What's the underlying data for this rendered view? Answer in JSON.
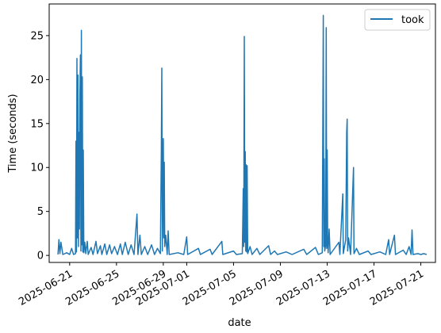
{
  "chart_data": {
    "type": "line",
    "xlabel": "date",
    "ylabel": "Time (seconds)",
    "x_tick_labels": [
      "2025-06-21",
      "2025-06-25",
      "2025-06-29",
      "2025-07-01",
      "2025-07-05",
      "2025-07-09",
      "2025-07-13",
      "2025-07-17",
      "2025-07-21"
    ],
    "y_ticks": [
      0,
      5,
      10,
      15,
      20,
      25
    ],
    "xlim": [
      "2025-06-19T06:00",
      "2025-07-22T06:00"
    ],
    "ylim": [
      -0.8,
      28.6
    ],
    "legend": {
      "position": "top-right",
      "entries": [
        "took"
      ]
    },
    "grid": false,
    "series": [
      {
        "name": "took",
        "color": "#1f77b4",
        "points": [
          [
            "2025-06-20T00:00",
            0.1
          ],
          [
            "2025-06-20T02:00",
            1.8
          ],
          [
            "2025-06-20T04:00",
            0.2
          ],
          [
            "2025-06-20T06:00",
            1.5
          ],
          [
            "2025-06-20T10:00",
            0.1
          ],
          [
            "2025-06-20T18:00",
            0.3
          ],
          [
            "2025-06-21T00:00",
            0.1
          ],
          [
            "2025-06-21T04:00",
            0.8
          ],
          [
            "2025-06-21T08:00",
            0.1
          ],
          [
            "2025-06-21T12:00",
            0.2
          ],
          [
            "2025-06-21T13:00",
            13.0
          ],
          [
            "2025-06-21T14:00",
            0.4
          ],
          [
            "2025-06-21T15:00",
            22.4
          ],
          [
            "2025-06-21T16:00",
            2.0
          ],
          [
            "2025-06-21T17:00",
            20.5
          ],
          [
            "2025-06-21T18:00",
            1.0
          ],
          [
            "2025-06-21T19:00",
            14.0
          ],
          [
            "2025-06-21T20:00",
            3.0
          ],
          [
            "2025-06-21T21:00",
            18.0
          ],
          [
            "2025-06-21T22:00",
            22.8
          ],
          [
            "2025-06-21T23:00",
            0.5
          ],
          [
            "2025-06-22T00:00",
            25.6
          ],
          [
            "2025-06-22T01:00",
            1.2
          ],
          [
            "2025-06-22T02:00",
            20.3
          ],
          [
            "2025-06-22T03:00",
            0.4
          ],
          [
            "2025-06-22T04:00",
            12.0
          ],
          [
            "2025-06-22T05:00",
            0.3
          ],
          [
            "2025-06-22T07:00",
            1.5
          ],
          [
            "2025-06-22T09:00",
            0.2
          ],
          [
            "2025-06-22T12:00",
            1.6
          ],
          [
            "2025-06-22T14:00",
            0.1
          ],
          [
            "2025-06-22T20:00",
            0.9
          ],
          [
            "2025-06-23T00:00",
            0.1
          ],
          [
            "2025-06-23T06:00",
            1.6
          ],
          [
            "2025-06-23T09:00",
            0.2
          ],
          [
            "2025-06-23T15:00",
            1.1
          ],
          [
            "2025-06-23T18:00",
            0.1
          ],
          [
            "2025-06-24T00:00",
            1.3
          ],
          [
            "2025-06-24T04:00",
            0.1
          ],
          [
            "2025-06-24T10:00",
            1.2
          ],
          [
            "2025-06-24T14:00",
            0.2
          ],
          [
            "2025-06-24T20:00",
            1.0
          ],
          [
            "2025-06-25T02:00",
            0.1
          ],
          [
            "2025-06-25T08:00",
            1.3
          ],
          [
            "2025-06-25T12:00",
            0.1
          ],
          [
            "2025-06-25T18:00",
            1.5
          ],
          [
            "2025-06-26T00:00",
            0.1
          ],
          [
            "2025-06-26T06:00",
            1.2
          ],
          [
            "2025-06-26T12:00",
            0.1
          ],
          [
            "2025-06-26T18:00",
            4.7
          ],
          [
            "2025-06-26T20:00",
            0.1
          ],
          [
            "2025-06-27T00:00",
            2.3
          ],
          [
            "2025-06-27T03:00",
            0.1
          ],
          [
            "2025-06-27T10:00",
            1.0
          ],
          [
            "2025-06-27T16:00",
            0.1
          ],
          [
            "2025-06-28T00:00",
            1.2
          ],
          [
            "2025-06-28T06:00",
            0.1
          ],
          [
            "2025-06-28T12:00",
            0.8
          ],
          [
            "2025-06-28T18:00",
            0.2
          ],
          [
            "2025-06-28T20:00",
            11.9
          ],
          [
            "2025-06-28T21:00",
            21.3
          ],
          [
            "2025-06-28T22:00",
            0.5
          ],
          [
            "2025-06-28T23:00",
            11.0
          ],
          [
            "2025-06-29T00:00",
            13.3
          ],
          [
            "2025-06-29T01:00",
            2.0
          ],
          [
            "2025-06-29T02:00",
            10.6
          ],
          [
            "2025-06-29T03:00",
            1.0
          ],
          [
            "2025-06-29T05:00",
            2.3
          ],
          [
            "2025-06-29T08:00",
            0.1
          ],
          [
            "2025-06-29T10:00",
            2.8
          ],
          [
            "2025-06-29T12:00",
            0.1
          ],
          [
            "2025-06-30T06:00",
            0.3
          ],
          [
            "2025-06-30T18:00",
            0.1
          ],
          [
            "2025-07-01T00:00",
            2.1
          ],
          [
            "2025-07-01T02:00",
            0.1
          ],
          [
            "2025-07-02T00:00",
            0.8
          ],
          [
            "2025-07-02T04:00",
            0.1
          ],
          [
            "2025-07-03T00:00",
            0.7
          ],
          [
            "2025-07-03T04:00",
            0.1
          ],
          [
            "2025-07-04T00:00",
            1.6
          ],
          [
            "2025-07-04T02:00",
            0.1
          ],
          [
            "2025-07-05T00:00",
            0.5
          ],
          [
            "2025-07-05T06:00",
            0.1
          ],
          [
            "2025-07-05T18:00",
            0.2
          ],
          [
            "2025-07-05T20:00",
            7.6
          ],
          [
            "2025-07-05T21:00",
            1.0
          ],
          [
            "2025-07-05T22:00",
            24.9
          ],
          [
            "2025-07-05T23:00",
            1.5
          ],
          [
            "2025-07-06T00:00",
            11.8
          ],
          [
            "2025-07-06T01:00",
            0.5
          ],
          [
            "2025-07-06T02:00",
            10.3
          ],
          [
            "2025-07-06T03:00",
            0.4
          ],
          [
            "2025-07-06T04:00",
            10.2
          ],
          [
            "2025-07-06T05:00",
            0.2
          ],
          [
            "2025-07-06T10:00",
            1.0
          ],
          [
            "2025-07-06T14:00",
            0.1
          ],
          [
            "2025-07-07T00:00",
            0.8
          ],
          [
            "2025-07-07T06:00",
            0.1
          ],
          [
            "2025-07-08T00:00",
            1.1
          ],
          [
            "2025-07-08T04:00",
            0.1
          ],
          [
            "2025-07-08T12:00",
            0.5
          ],
          [
            "2025-07-08T18:00",
            0.1
          ],
          [
            "2025-07-09T12:00",
            0.4
          ],
          [
            "2025-07-10T00:00",
            0.1
          ],
          [
            "2025-07-11T00:00",
            0.7
          ],
          [
            "2025-07-11T06:00",
            0.1
          ],
          [
            "2025-07-12T00:00",
            0.9
          ],
          [
            "2025-07-12T06:00",
            0.1
          ],
          [
            "2025-07-12T14:00",
            0.3
          ],
          [
            "2025-07-12T16:00",
            27.3
          ],
          [
            "2025-07-12T17:00",
            1.0
          ],
          [
            "2025-07-12T18:00",
            11.0
          ],
          [
            "2025-07-12T19:00",
            0.5
          ],
          [
            "2025-07-12T21:00",
            1.2
          ],
          [
            "2025-07-12T22:00",
            25.9
          ],
          [
            "2025-07-12T23:00",
            0.8
          ],
          [
            "2025-07-13T00:00",
            12.0
          ],
          [
            "2025-07-13T01:00",
            2.0
          ],
          [
            "2025-07-13T02:00",
            0.3
          ],
          [
            "2025-07-13T04:00",
            3.0
          ],
          [
            "2025-07-13T06:00",
            0.1
          ],
          [
            "2025-07-14T00:00",
            1.5
          ],
          [
            "2025-07-14T02:00",
            0.1
          ],
          [
            "2025-07-14T08:00",
            7.0
          ],
          [
            "2025-07-14T09:00",
            0.2
          ],
          [
            "2025-07-14T14:00",
            1.8
          ],
          [
            "2025-07-14T16:00",
            14.0
          ],
          [
            "2025-07-14T17:00",
            15.5
          ],
          [
            "2025-07-14T18:00",
            0.5
          ],
          [
            "2025-07-14T20:00",
            2.0
          ],
          [
            "2025-07-15T00:00",
            0.1
          ],
          [
            "2025-07-15T06:00",
            10.0
          ],
          [
            "2025-07-15T07:00",
            0.2
          ],
          [
            "2025-07-15T12:00",
            0.8
          ],
          [
            "2025-07-15T18:00",
            0.1
          ],
          [
            "2025-07-16T12:00",
            0.5
          ],
          [
            "2025-07-16T18:00",
            0.1
          ],
          [
            "2025-07-17T12:00",
            0.4
          ],
          [
            "2025-07-18T00:00",
            0.1
          ],
          [
            "2025-07-18T06:00",
            1.8
          ],
          [
            "2025-07-18T08:00",
            0.1
          ],
          [
            "2025-07-18T18:00",
            2.3
          ],
          [
            "2025-07-18T20:00",
            0.1
          ],
          [
            "2025-07-19T12:00",
            0.6
          ],
          [
            "2025-07-19T18:00",
            0.1
          ],
          [
            "2025-07-20T00:00",
            1.0
          ],
          [
            "2025-07-20T04:00",
            0.1
          ],
          [
            "2025-07-20T06:00",
            2.9
          ],
          [
            "2025-07-20T08:00",
            0.1
          ],
          [
            "2025-07-20T18:00",
            0.2
          ],
          [
            "2025-07-21T00:00",
            0.1
          ],
          [
            "2025-07-21T06:00",
            0.2
          ],
          [
            "2025-07-21T12:00",
            0.1
          ]
        ]
      }
    ]
  }
}
